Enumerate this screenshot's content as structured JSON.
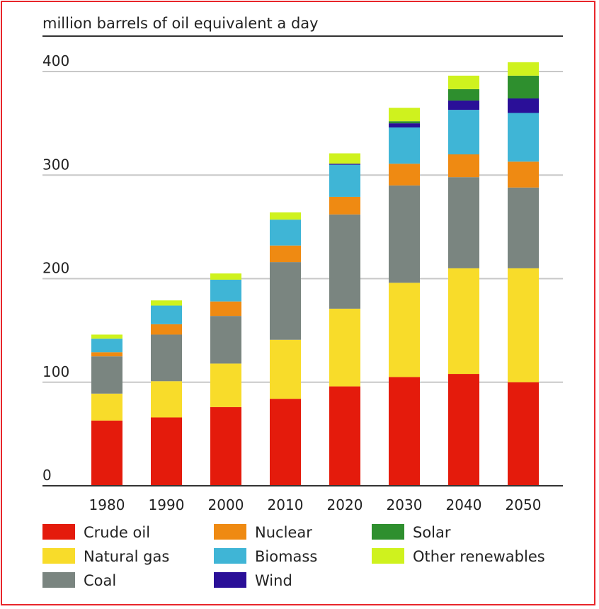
{
  "chart_data": {
    "type": "bar",
    "stacked": true,
    "title": "",
    "ylabel": "million barrels of oil equivalent a day",
    "xlabel": "",
    "ylim": [
      0,
      420
    ],
    "yticks": [
      0,
      100,
      200,
      300,
      400
    ],
    "grid": true,
    "legend_position": "bottom",
    "categories": [
      "1980",
      "1990",
      "2000",
      "2010",
      "2020",
      "2030",
      "2040",
      "2050"
    ],
    "series": [
      {
        "name": "Crude oil",
        "color": "#e41b0c",
        "values": [
          63,
          66,
          76,
          84,
          96,
          105,
          108,
          100
        ]
      },
      {
        "name": "Natural gas",
        "color": "#f8dc2a",
        "values": [
          26,
          35,
          42,
          57,
          75,
          91,
          102,
          110
        ]
      },
      {
        "name": "Coal",
        "color": "#7a8580",
        "values": [
          36,
          45,
          46,
          75,
          91,
          94,
          88,
          78
        ]
      },
      {
        "name": "Nuclear",
        "color": "#ef8a12",
        "values": [
          4,
          10,
          14,
          16,
          17,
          21,
          22,
          25
        ]
      },
      {
        "name": "Biomass",
        "color": "#3fb5d6",
        "values": [
          13,
          18,
          21,
          25,
          31,
          35,
          43,
          47
        ]
      },
      {
        "name": "Wind",
        "color": "#2a0f98",
        "values": [
          0,
          0,
          0,
          0,
          1,
          4,
          9,
          14
        ]
      },
      {
        "name": "Solar",
        "color": "#2e8f2e",
        "values": [
          0,
          0,
          0,
          0,
          0,
          2,
          11,
          22
        ]
      },
      {
        "name": "Other renewables",
        "color": "#cff21e",
        "values": [
          4,
          5,
          6,
          7,
          10,
          13,
          13,
          13
        ]
      }
    ]
  }
}
